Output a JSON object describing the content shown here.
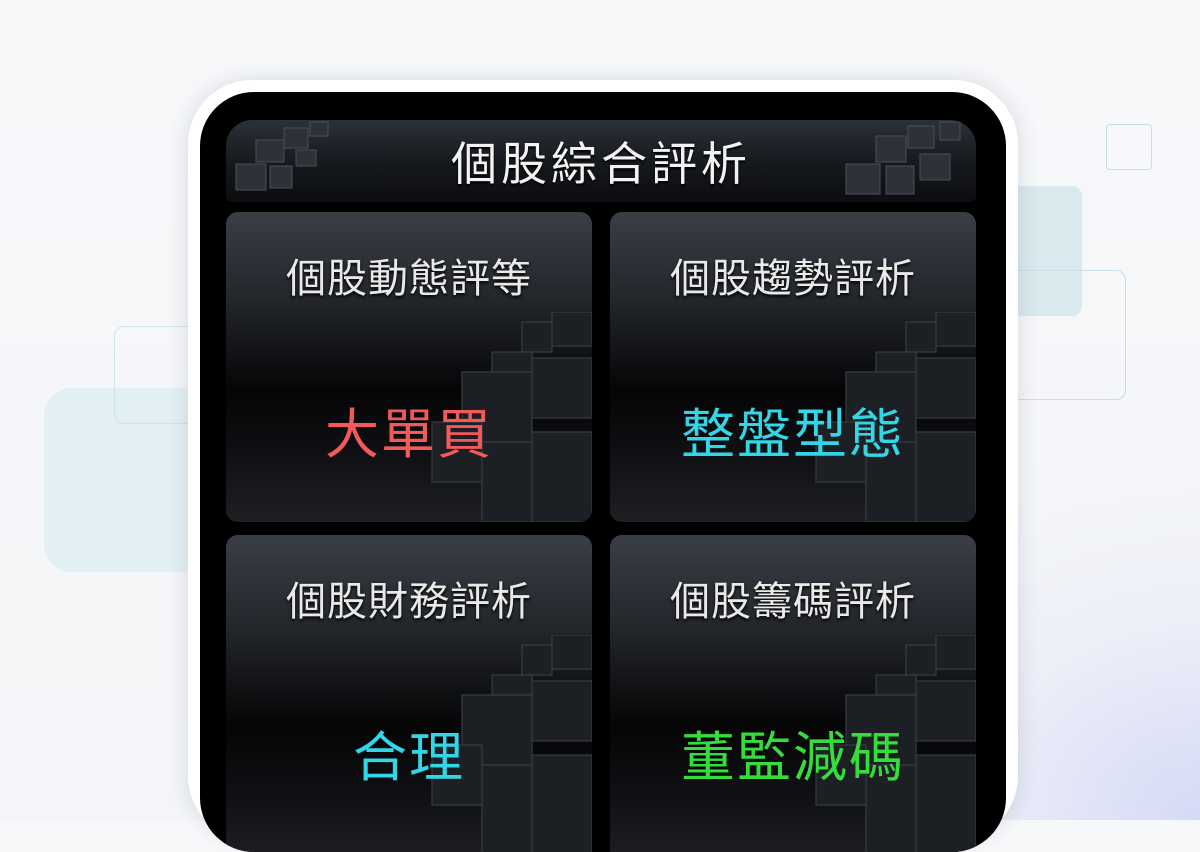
{
  "app": {
    "title": "個股綜合評析"
  },
  "tiles": [
    {
      "title": "個股動態評等",
      "value": "大單買",
      "color": "#f25a5a"
    },
    {
      "title": "個股趨勢評析",
      "value": "整盤型態",
      "color": "#33d6e6"
    },
    {
      "title": "個股財務評析",
      "value": "合理",
      "color": "#33d6e6"
    },
    {
      "title": "個股籌碼評析",
      "value": "董監減碼",
      "color": "#35dd3a"
    }
  ]
}
